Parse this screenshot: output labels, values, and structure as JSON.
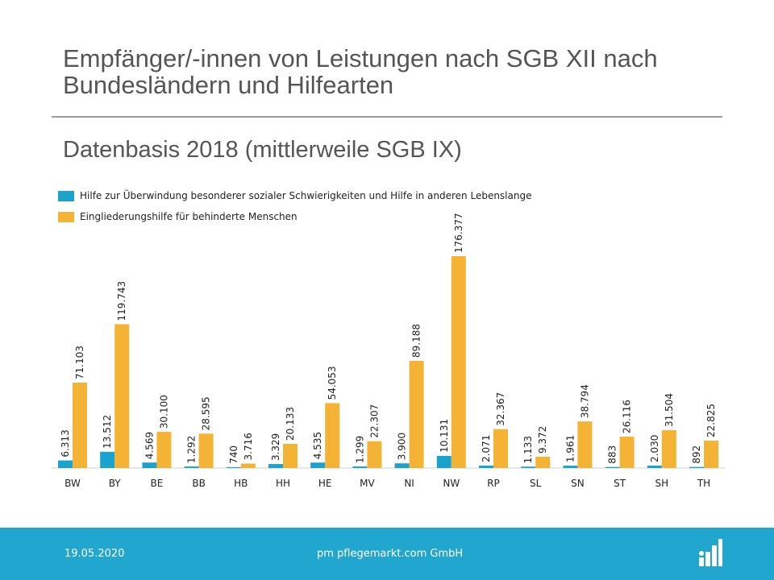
{
  "title": "Empfänger/-innen von Leistungen nach SGB XII nach Bundesländern und Hilfearten",
  "subtitle": "Datenbasis 2018 (mittlerweile SGB IX)",
  "footer": {
    "date": "19.05.2020",
    "company": "pm pflegemarkt.com GmbH"
  },
  "colors": {
    "series1": "#1aa3cc",
    "series2": "#f4b334",
    "footer": "#20a6cf"
  },
  "chart_data": {
    "type": "bar",
    "title": "Empfänger/-innen von Leistungen nach SGB XII nach Bundesländern und Hilfearten",
    "subtitle": "Datenbasis 2018 (mittlerweile SGB IX)",
    "categories": [
      "BW",
      "BY",
      "BE",
      "BB",
      "HB",
      "HH",
      "HE",
      "MV",
      "NI",
      "NW",
      "RP",
      "SL",
      "SN",
      "ST",
      "SH",
      "TH"
    ],
    "series": [
      {
        "name": "Hilfe zur Überwindung besonderer sozialer Schwierigkeiten und Hilfe in anderen Lebenslange",
        "values": [
          6313,
          13512,
          4569,
          1292,
          740,
          3329,
          4535,
          1299,
          3900,
          10131,
          2071,
          1133,
          1961,
          883,
          2030,
          892
        ],
        "labels": [
          "6.313",
          "13.512",
          "4.569",
          "1.292",
          "740",
          "3.329",
          "4.535",
          "1.299",
          "3.900",
          "10.131",
          "2.071",
          "1.133",
          "1.961",
          "883",
          "2.030",
          "892"
        ]
      },
      {
        "name": "Eingliederungshilfe für behinderte Menschen",
        "values": [
          71103,
          119743,
          30100,
          28595,
          3716,
          20133,
          54053,
          22307,
          89188,
          176377,
          32367,
          9372,
          38794,
          26116,
          31504,
          22825
        ],
        "labels": [
          "71.103",
          "119.743",
          "30.100",
          "28.595",
          "3.716",
          "20.133",
          "54.053",
          "22.307",
          "89.188",
          "176.377",
          "32.367",
          "9.372",
          "38.794",
          "26.116",
          "31.504",
          "22.825"
        ]
      }
    ],
    "xlabel": "",
    "ylabel": "",
    "ylim": [
      0,
      176377
    ],
    "grid": false,
    "legend": "top-left",
    "data_labels": "rotated"
  }
}
